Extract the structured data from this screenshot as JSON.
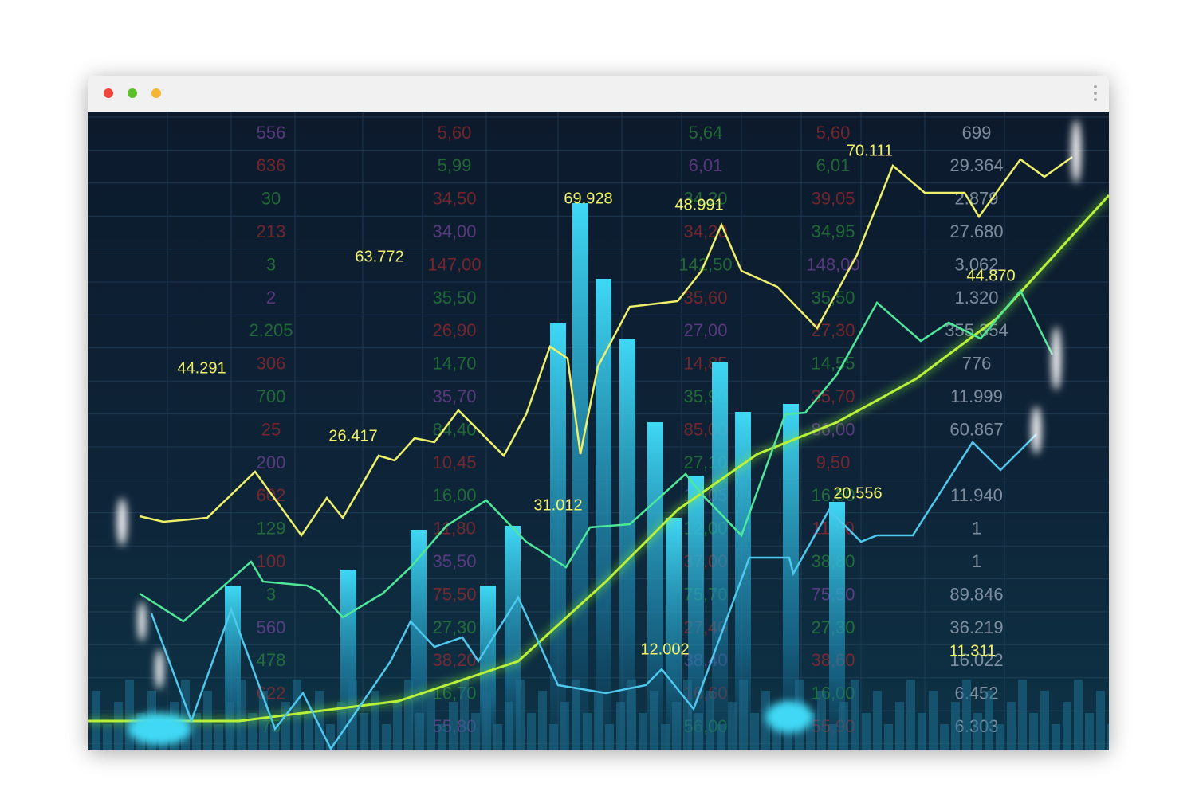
{
  "annotations": [
    "44.291",
    "63.772",
    "69.928",
    "48.991",
    "70.111",
    "44.870",
    "26.417",
    "31.012",
    "20.556",
    "12.002",
    "11.311"
  ],
  "ticker": {
    "columns": [
      [
        "556",
        "636",
        "30",
        "213",
        "3",
        "2",
        "2.205",
        "306",
        "700",
        "25",
        "200",
        "602",
        "129",
        "100",
        "3",
        "560",
        "478",
        "622",
        "75"
      ],
      [
        "5,60",
        "5,99",
        "34,50",
        "34,00",
        "147,00",
        "35,50",
        "26,90",
        "14,70",
        "35,70",
        "84,40",
        "10,45",
        "16,00",
        "11,80",
        "35,50",
        "75,50",
        "27,30",
        "38,20",
        "16,70",
        "55,80"
      ],
      [
        "5,64",
        "6,01",
        "34,20",
        "34,20",
        "142,50",
        "35,60",
        "27,00",
        "14,85",
        "35,90",
        "85,00",
        "27,10",
        "12,05",
        "12,00",
        "37,00",
        "75,70",
        "27,40",
        "38,40",
        "16,60",
        "56,00"
      ],
      [
        "5,60",
        "6,01",
        "39,05",
        "34,95",
        "148,00",
        "35,50",
        "27,30",
        "14,55",
        "35,70",
        "86,00",
        "9,50",
        "16,50",
        "11,80",
        "38,80",
        "75,50",
        "27,30",
        "38,60",
        "16,00",
        "55,90"
      ],
      [
        "699",
        "29.364",
        "2.879",
        "27.680",
        "3.062",
        "1.320",
        "355.354",
        "776",
        "11.999",
        "60.867",
        null,
        "11.940",
        "1",
        "1",
        "89.846",
        "36.219",
        "16.022",
        "6.452",
        "6.303"
      ]
    ]
  }
}
